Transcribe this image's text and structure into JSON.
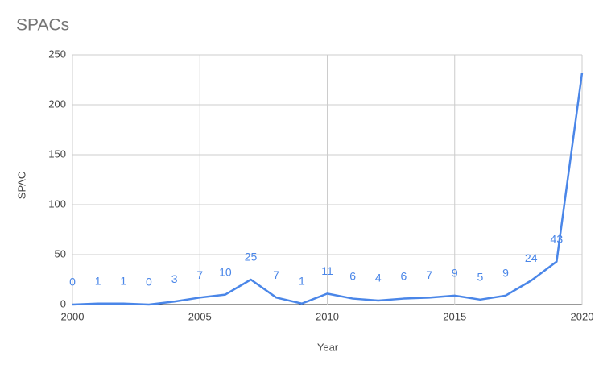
{
  "chart_data": {
    "type": "line",
    "title": "SPACs",
    "x_label": "Year",
    "y_label": "SPAC",
    "x": [
      2000,
      2001,
      2002,
      2003,
      2004,
      2005,
      2006,
      2007,
      2008,
      2009,
      2010,
      2011,
      2012,
      2013,
      2014,
      2015,
      2016,
      2017,
      2018,
      2019,
      2020
    ],
    "series": [
      {
        "name": "SPAC",
        "color": "#4a86e8",
        "values": [
          0,
          1,
          1,
          0,
          3,
          7,
          10,
          25,
          7,
          1,
          11,
          6,
          4,
          6,
          7,
          9,
          5,
          9,
          24,
          43,
          232
        ],
        "value_labels": [
          "0",
          "1",
          "1",
          "0",
          "3",
          "7",
          "10",
          "25",
          "7",
          "1",
          "11",
          "6",
          "4",
          "6",
          "7",
          "9",
          "5",
          "9",
          "24",
          "43",
          null
        ]
      }
    ],
    "xlim": [
      2000,
      2020
    ],
    "xticks": [
      2000,
      2005,
      2010,
      2015,
      2020
    ],
    "ylim": [
      0,
      250
    ],
    "yticks": [
      0,
      50,
      100,
      150,
      200,
      250
    ],
    "grid": true
  }
}
